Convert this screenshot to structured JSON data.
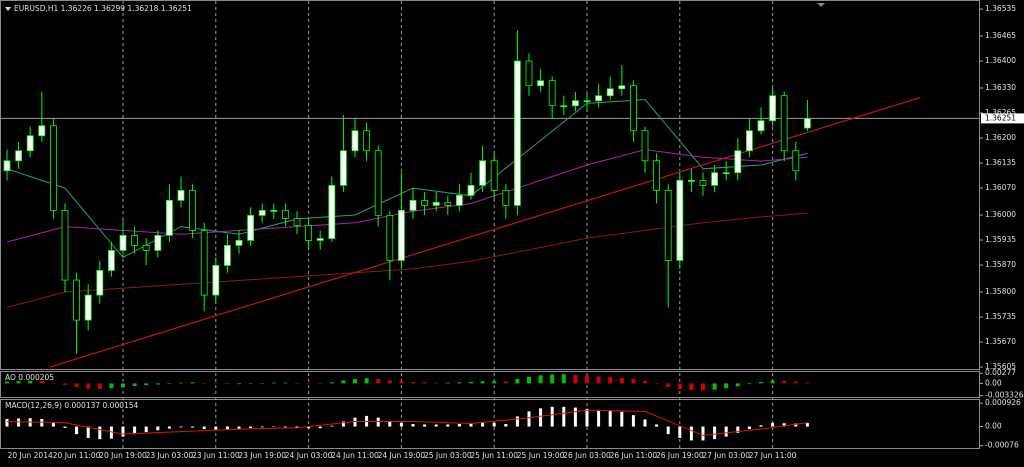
{
  "chart_data": [
    {
      "type": "candlestick",
      "title": "EURUSD,H1  1.36226 1.36299 1.36218 1.36251",
      "categories": [
        null,
        null,
        "20 Jun 2014",
        null,
        null,
        null,
        "20 Jun 11:00",
        null,
        null,
        null,
        "20 Jun 19:00",
        null,
        null,
        null,
        "23 Jun 03:00",
        null,
        null,
        null,
        "23 Jun 11:00",
        null,
        null,
        null,
        "23 Jun 19:00",
        null,
        null,
        null,
        "24 Jun 03:00",
        null,
        null,
        null,
        "24 Jun 11:00",
        null,
        null,
        null,
        "24 Jun 19:00",
        null,
        null,
        null,
        "25 Jun 03:00",
        null,
        null,
        null,
        "25 Jun 11:00",
        null,
        null,
        null,
        "25 Jun 19:00",
        null,
        null,
        null,
        "26 Jun 03:00",
        null,
        null,
        null,
        "26 Jun 11:00",
        null,
        null,
        null,
        "26 Jun 19:00",
        null,
        null,
        null,
        "27 Jun 03:00",
        null,
        null,
        null,
        "27 Jun 11:00",
        null,
        null,
        null
      ],
      "open": [
        1.36115,
        1.36141,
        1.36167,
        1.36206,
        1.36232,
        1.36012,
        1.35831,
        1.35727,
        1.35792,
        1.35856,
        1.35908,
        1.35947,
        1.35921,
        1.35908,
        1.35947,
        1.36038,
        1.36064,
        1.3596,
        1.35792,
        1.35869,
        1.35921,
        1.35934,
        1.35999,
        1.36012,
        1.36012,
        1.35991,
        1.35973,
        1.35934,
        1.35939,
        1.36077,
        1.36167,
        1.36219,
        1.36167,
        1.35999,
        1.35882,
        1.36012,
        1.36038,
        1.36025,
        1.36033,
        1.36025,
        1.36051,
        1.36077,
        1.36141,
        1.36064,
        1.36025,
        1.364,
        1.36336,
        1.36349,
        1.36284,
        1.36284,
        1.36297,
        1.36297,
        1.3631,
        1.36328,
        1.36336,
        1.36219,
        1.36141,
        1.36064,
        1.35882,
        1.3609,
        1.3609,
        1.36077,
        1.3611,
        1.3611,
        1.36167,
        1.36219,
        1.36245,
        1.3631,
        1.36167,
        1.36226
      ],
      "high": [
        1.3617,
        1.3619,
        1.3623,
        1.3632,
        1.3625,
        1.3603,
        1.3585,
        1.3582,
        1.3588,
        1.3593,
        1.3599,
        1.3597,
        1.3594,
        1.3596,
        1.3608,
        1.361,
        1.3608,
        1.3598,
        1.3589,
        1.3595,
        1.3596,
        1.3602,
        1.3603,
        1.3603,
        1.3603,
        1.3601,
        1.3599,
        1.3596,
        1.361,
        1.3626,
        1.3625,
        1.3624,
        1.3618,
        1.3601,
        1.3611,
        1.3607,
        1.3606,
        1.3606,
        1.3605,
        1.3608,
        1.3611,
        1.3618,
        1.3616,
        1.3608,
        1.3648,
        1.3642,
        1.3638,
        1.3636,
        1.3631,
        1.3632,
        1.3632,
        1.3634,
        1.3636,
        1.3639,
        1.3635,
        1.3623,
        1.3616,
        1.3608,
        1.3611,
        1.3612,
        1.3611,
        1.3613,
        1.3614,
        1.362,
        1.3625,
        1.3628,
        1.3633,
        1.3632,
        1.3619,
        1.36299
      ],
      "low": [
        1.3609,
        1.3612,
        1.3615,
        1.3619,
        1.3599,
        1.358,
        1.3564,
        1.357,
        1.3577,
        1.3584,
        1.3589,
        1.359,
        1.3587,
        1.3589,
        1.3593,
        1.3602,
        1.3594,
        1.3575,
        1.3577,
        1.3585,
        1.359,
        1.3592,
        1.3598,
        1.3599,
        1.3597,
        1.3595,
        1.3591,
        1.3591,
        1.3593,
        1.3606,
        1.3615,
        1.3614,
        1.3597,
        1.3583,
        1.3586,
        1.3599,
        1.36,
        1.3601,
        1.36,
        1.3601,
        1.3604,
        1.3606,
        1.3604,
        1.3599,
        1.36,
        1.3631,
        1.3632,
        1.3625,
        1.3626,
        1.3627,
        1.3627,
        1.3628,
        1.363,
        1.3631,
        1.3619,
        1.3611,
        1.3603,
        1.3576,
        1.3586,
        1.3606,
        1.3605,
        1.3606,
        1.3609,
        1.3609,
        1.3615,
        1.3621,
        1.3623,
        1.3614,
        1.3609,
        1.36218
      ],
      "close": [
        1.36141,
        1.36167,
        1.36206,
        1.36232,
        1.36012,
        1.35831,
        1.35727,
        1.35792,
        1.35856,
        1.35908,
        1.35947,
        1.35921,
        1.35908,
        1.35947,
        1.36038,
        1.36064,
        1.3596,
        1.35792,
        1.35869,
        1.35921,
        1.35934,
        1.35999,
        1.36012,
        1.36012,
        1.35991,
        1.35973,
        1.35934,
        1.35939,
        1.36077,
        1.36167,
        1.36219,
        1.36167,
        1.35999,
        1.35882,
        1.36012,
        1.36038,
        1.36025,
        1.36033,
        1.36025,
        1.36051,
        1.36077,
        1.36141,
        1.36064,
        1.36025,
        1.364,
        1.36336,
        1.36349,
        1.36284,
        1.36284,
        1.36297,
        1.36297,
        1.3631,
        1.36328,
        1.36336,
        1.36219,
        1.36141,
        1.36064,
        1.35882,
        1.3609,
        1.3609,
        1.36077,
        1.3611,
        1.3611,
        1.36167,
        1.36219,
        1.36245,
        1.3631,
        1.36167,
        1.36115,
        1.36251
      ],
      "up_color": "#ffffff",
      "down_color": "#000000",
      "wick_color": "#00ff00",
      "ylim": [
        1.356,
        1.36556
      ],
      "yticks": [
        1.36535,
        1.36465,
        {
          "value": 1.364,
          "label": "1.36400"
        },
        {
          "value": 1.3633,
          "label": "1.36330"
        },
        1.36265,
        {
          "value": 1.362,
          "label": "1.36200"
        },
        1.36135,
        {
          "value": 1.3607,
          "label": "1.36070"
        },
        {
          "value": 1.36,
          "label": "1.36000"
        },
        1.35935,
        {
          "value": 1.3587,
          "label": "1.35870"
        },
        {
          "value": 1.358,
          "label": "1.35800"
        },
        1.35735,
        {
          "value": 1.3567,
          "label": "1.35670"
        },
        1.35605
      ],
      "grid": true,
      "lines": [
        {
          "color": "#1fa37a",
          "x": [
            0,
            5,
            10,
            15,
            20,
            25,
            30,
            35,
            40,
            45,
            50,
            55,
            60,
            65,
            69
          ],
          "values": [
            1.3612,
            1.3607,
            1.3589,
            1.3597,
            1.3595,
            1.3599,
            1.36,
            1.3607,
            1.3605,
            1.3617,
            1.3629,
            1.363,
            1.3612,
            1.3613,
            1.3616
          ]
        },
        {
          "color": "#b020b0",
          "x": [
            0,
            5,
            10,
            15,
            20,
            25,
            30,
            35,
            40,
            45,
            50,
            55,
            60,
            65,
            69
          ],
          "values": [
            1.3593,
            1.3597,
            1.3596,
            1.3595,
            1.3596,
            1.3597,
            1.3598,
            1.3601,
            1.3603,
            1.3608,
            1.3613,
            1.3617,
            1.3615,
            1.3614,
            1.3615
          ]
        },
        {
          "color": "#8b1a1a",
          "x": [
            0,
            5,
            10,
            15,
            20,
            25,
            30,
            35,
            40,
            45,
            50,
            55,
            60,
            65,
            69
          ],
          "values": [
            1.3576,
            1.358,
            1.3581,
            1.3582,
            1.3583,
            1.3584,
            1.3585,
            1.3586,
            1.3588,
            1.3591,
            1.3594,
            1.3596,
            1.3598,
            1.35995,
            1.36005
          ]
        }
      ],
      "trendline": {
        "color": "#c0161c",
        "x": [
          3.7,
          78.7
        ],
        "values": [
          1.35605,
          1.36305
        ]
      },
      "last_price": 1.36251
    },
    {
      "type": "ao",
      "title": "AO 0.000205",
      "values": [
        0.0005,
        0.0006,
        0.0007,
        0.0006,
        0.0002,
        -0.0004,
        -0.001,
        -0.0014,
        -0.0015,
        -0.0013,
        -0.001,
        -0.0007,
        -0.0005,
        -0.0003,
        0,
        0.0002,
        0.0003,
        0.0001,
        -0.0001,
        -0.0002,
        -0.0002,
        -0.0001,
        0.0001,
        0.0002,
        0.0002,
        0.0001,
        0,
        -0.0001,
        0.0003,
        0.0008,
        0.0012,
        0.0014,
        0.0012,
        0.0008,
        0.0006,
        0.0004,
        0.0003,
        0.0002,
        0.0002,
        0.0003,
        0.0004,
        0.0006,
        0.0006,
        0.0005,
        0.0012,
        0.0018,
        0.0022,
        0.0024,
        0.0025,
        0.0023,
        0.0021,
        0.0019,
        0.0017,
        0.0015,
        0.0012,
        0.0007,
        0,
        -0.001,
        -0.0015,
        -0.0018,
        -0.0019,
        -0.0017,
        -0.0013,
        -0.0008,
        -0.0002,
        0.0004,
        0.0008,
        0.0007,
        0.0005,
        0.000205
      ],
      "up_color": "#00c000",
      "down_color": "#d00000",
      "ylim": [
        -0.0037,
        0.0031
      ],
      "yticks": [
        0.00277,
        {
          "value": 0,
          "label": "0.00"
        },
        -0.003326
      ]
    },
    {
      "type": "macd",
      "title": "MACD(12,26,9) 0.000137 0.000154",
      "values": [
        0.0003,
        0.00032,
        0.00033,
        0.0003,
        0.00018,
        -5e-05,
        -0.0003,
        -0.00045,
        -0.0005,
        -0.00048,
        -0.0004,
        -0.0003,
        -0.00022,
        -0.00015,
        -8e-05,
        -3e-05,
        -4e-05,
        -0.0001,
        -0.00012,
        -0.00012,
        -0.0001,
        -6e-05,
        -3e-05,
        -2e-05,
        -3e-05,
        -5e-05,
        -7e-05,
        -7e-05,
        3e-05,
        0.0002,
        0.00035,
        0.00042,
        0.00035,
        0.0002,
        0.00015,
        0.0001,
        8e-05,
        8e-05,
        8e-05,
        0.0001,
        0.00013,
        0.00018,
        0.00015,
        0.0001,
        0.0004,
        0.0006,
        0.00072,
        0.00078,
        0.00078,
        0.00075,
        0.0007,
        0.00066,
        0.00062,
        0.00058,
        0.00045,
        0.00028,
        8e-05,
        -0.0003,
        -0.00045,
        -0.00055,
        -0.00055,
        -0.0005,
        -0.0004,
        -0.00025,
        -0.0001,
        5e-05,
        0.00015,
        0.00013,
        0.00012,
        0.000137
      ],
      "color": "#ffffff",
      "signal": {
        "color": "#e01010",
        "x": [
          0,
          5,
          10,
          15,
          20,
          25,
          30,
          35,
          40,
          45,
          50,
          55,
          60,
          65,
          69
        ],
        "values": [
          0.0002,
          0.00015,
          -0.0003,
          -0.0002,
          -0.0001,
          -5e-05,
          0.0002,
          0.0002,
          0.00012,
          0.00035,
          0.00065,
          0.0006,
          -0.00035,
          -0.0001,
          0.000154
        ]
      },
      "ylim": [
        -0.00085,
        0.00105
      ],
      "yticks": [
        0.000926,
        {
          "value": 0,
          "label": "0.00"
        },
        -0.00076
      ]
    }
  ]
}
